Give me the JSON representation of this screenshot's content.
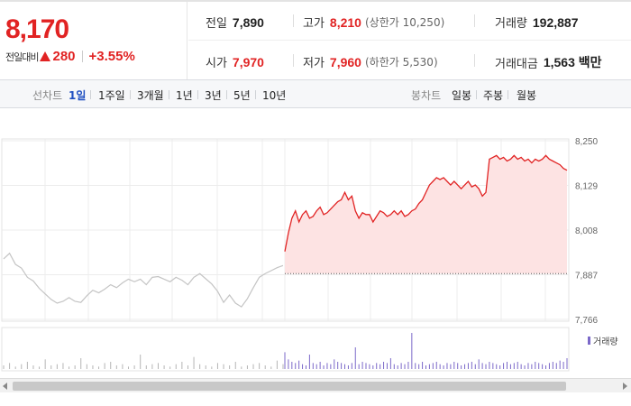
{
  "header": {
    "price": "8,170",
    "change_label": "전일대비",
    "change_value": "280",
    "change_pct": "+3.55%",
    "prev_close_label": "전일",
    "prev_close": "7,890",
    "open_label": "시가",
    "open": "7,970",
    "high_label": "고가",
    "high": "8,210",
    "upper_limit": "(상한가 10,250)",
    "low_label": "저가",
    "low": "7,960",
    "lower_limit": "(하한가 5,530)",
    "volume_label": "거래량",
    "volume": "192,887",
    "amount_label": "거래대금",
    "amount": "1,563 백만"
  },
  "toolbar": {
    "line_chart_label": "선차트",
    "line_periods": [
      "1일",
      "1주일",
      "3개월",
      "1년",
      "3년",
      "5년",
      "10년"
    ],
    "active_period": "1일",
    "candle_chart_label": "봉차트",
    "candle_periods": [
      "일봉",
      "주봉",
      "월봉"
    ]
  },
  "colors": {
    "up": "#e12323",
    "prev_day_line": "#c4c4c4",
    "area_fill": "#fde3e3",
    "volume_today": "#7b68c9",
    "volume_prev": "#b5b5b5"
  },
  "chart_data": {
    "type": "line",
    "ylim": [
      7766,
      8250
    ],
    "yticks": [
      "8,250",
      "8,129",
      "8,008",
      "7,887",
      "7,766"
    ],
    "baseline": 7890,
    "volume_legend": "거래량",
    "prev_day": [
      7930,
      7945,
      7915,
      7905,
      7880,
      7870,
      7850,
      7835,
      7820,
      7810,
      7815,
      7825,
      7815,
      7812,
      7830,
      7845,
      7838,
      7848,
      7860,
      7852,
      7865,
      7875,
      7868,
      7875,
      7860,
      7880,
      7882,
      7875,
      7868,
      7880,
      7872,
      7860,
      7880,
      7890,
      7876,
      7862,
      7842,
      7812,
      7832,
      7810,
      7800,
      7822,
      7852,
      7880,
      7890,
      7898,
      7906,
      7912
    ],
    "today": [
      7950,
      8000,
      8040,
      8060,
      8030,
      8050,
      8060,
      8040,
      8045,
      8060,
      8070,
      8050,
      8055,
      8065,
      8075,
      8085,
      8090,
      8110,
      8090,
      8100,
      8060,
      8040,
      8055,
      8050,
      8050,
      8030,
      8045,
      8060,
      8055,
      8045,
      8050,
      8060,
      8050,
      8060,
      8045,
      8050,
      8060,
      8065,
      8080,
      8090,
      8110,
      8130,
      8140,
      8150,
      8145,
      8150,
      8140,
      8130,
      8140,
      8130,
      8120,
      8130,
      8140,
      8125,
      8130,
      8120,
      8100,
      8110,
      8200,
      8205,
      8210,
      8200,
      8205,
      8195,
      8200,
      8210,
      8200,
      8205,
      8195,
      8200,
      8190,
      8200,
      8195,
      8200,
      8210,
      8200,
      8195,
      8190,
      8185,
      8175,
      8170
    ],
    "volume_prev": [
      3,
      5,
      2,
      4,
      6,
      3,
      2,
      8,
      3,
      4,
      5,
      2,
      3,
      9,
      4,
      3,
      2,
      5,
      6,
      3,
      4,
      2,
      3,
      12,
      3,
      4,
      5,
      3,
      2,
      4,
      6,
      3,
      10,
      4,
      3,
      2,
      5,
      4,
      3,
      6,
      2,
      3,
      4,
      5,
      3,
      2,
      7,
      4
    ],
    "volume_today": [
      14,
      8,
      6,
      5,
      7,
      4,
      3,
      12,
      5,
      4,
      6,
      3,
      5,
      4,
      8,
      6,
      5,
      4,
      3,
      5,
      18,
      4,
      6,
      5,
      4,
      3,
      5,
      4,
      6,
      5,
      9,
      4,
      3,
      5,
      4,
      6,
      30,
      5,
      4,
      6,
      3,
      4,
      5,
      6,
      4,
      3,
      5,
      4,
      6,
      5,
      3,
      4,
      5,
      6,
      4,
      8,
      5,
      4,
      6,
      5,
      4,
      3,
      5,
      6,
      4,
      5,
      6,
      4,
      3,
      5,
      4,
      6,
      5,
      4,
      3,
      5,
      6,
      5,
      7,
      6,
      9
    ]
  }
}
